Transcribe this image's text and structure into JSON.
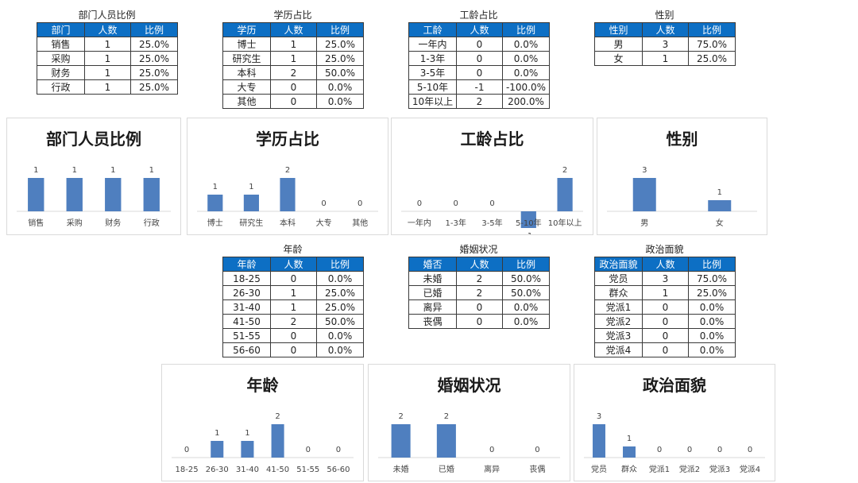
{
  "colors": {
    "header_bg": "#0d6fc4",
    "bar": "#4f7fbf"
  },
  "tables": {
    "dept": {
      "title": "部门人员比例",
      "headers": [
        "部门",
        "人数",
        "比例"
      ],
      "rows": [
        [
          "销售",
          "1",
          "25.0%"
        ],
        [
          "采购",
          "1",
          "25.0%"
        ],
        [
          "财务",
          "1",
          "25.0%"
        ],
        [
          "行政",
          "1",
          "25.0%"
        ]
      ]
    },
    "edu": {
      "title": "学历占比",
      "headers": [
        "学历",
        "人数",
        "比例"
      ],
      "rows": [
        [
          "博士",
          "1",
          "25.0%"
        ],
        [
          "研究生",
          "1",
          "25.0%"
        ],
        [
          "本科",
          "2",
          "50.0%"
        ],
        [
          "大专",
          "0",
          "0.0%"
        ],
        [
          "其他",
          "0",
          "0.0%"
        ]
      ]
    },
    "tenure": {
      "title": "工龄占比",
      "headers": [
        "工龄",
        "人数",
        "比例"
      ],
      "rows": [
        [
          "一年内",
          "0",
          "0.0%"
        ],
        [
          "1-3年",
          "0",
          "0.0%"
        ],
        [
          "3-5年",
          "0",
          "0.0%"
        ],
        [
          "5-10年",
          "-1",
          "-100.0%"
        ],
        [
          "10年以上",
          "2",
          "200.0%"
        ]
      ]
    },
    "gender": {
      "title": "性别",
      "headers": [
        "性别",
        "人数",
        "比例"
      ],
      "rows": [
        [
          "男",
          "3",
          "75.0%"
        ],
        [
          "女",
          "1",
          "25.0%"
        ]
      ]
    },
    "age": {
      "title": "年龄",
      "headers": [
        "年龄",
        "人数",
        "比例"
      ],
      "rows": [
        [
          "18-25",
          "0",
          "0.0%"
        ],
        [
          "26-30",
          "1",
          "25.0%"
        ],
        [
          "31-40",
          "1",
          "25.0%"
        ],
        [
          "41-50",
          "2",
          "50.0%"
        ],
        [
          "51-55",
          "0",
          "0.0%"
        ],
        [
          "56-60",
          "0",
          "0.0%"
        ]
      ]
    },
    "marriage": {
      "title": "婚姻状况",
      "headers": [
        "婚否",
        "人数",
        "比例"
      ],
      "rows": [
        [
          "未婚",
          "2",
          "50.0%"
        ],
        [
          "已婚",
          "2",
          "50.0%"
        ],
        [
          "离异",
          "0",
          "0.0%"
        ],
        [
          "丧偶",
          "0",
          "0.0%"
        ]
      ]
    },
    "politics": {
      "title": "政治面貌",
      "headers": [
        "政治面貌",
        "人数",
        "比例"
      ],
      "rows": [
        [
          "党员",
          "3",
          "75.0%"
        ],
        [
          "群众",
          "1",
          "25.0%"
        ],
        [
          "党派1",
          "0",
          "0.0%"
        ],
        [
          "党派2",
          "0",
          "0.0%"
        ],
        [
          "党派3",
          "0",
          "0.0%"
        ],
        [
          "党派4",
          "0",
          "0.0%"
        ]
      ]
    }
  },
  "chart_data": [
    {
      "id": "dept",
      "type": "bar",
      "title": "部门人员比例",
      "categories": [
        "销售",
        "采购",
        "财务",
        "行政"
      ],
      "values": [
        1,
        1,
        1,
        1
      ],
      "ylim": [
        0,
        1
      ]
    },
    {
      "id": "edu",
      "type": "bar",
      "title": "学历占比",
      "categories": [
        "博士",
        "研究生",
        "本科",
        "大专",
        "其他"
      ],
      "values": [
        1,
        1,
        2,
        0,
        0
      ],
      "ylim": [
        0,
        2
      ]
    },
    {
      "id": "tenure",
      "type": "bar",
      "title": "工龄占比",
      "categories": [
        "一年内",
        "1-3年",
        "3-5年",
        "5-10年",
        "10年以上"
      ],
      "values": [
        0,
        0,
        0,
        -1,
        2
      ],
      "ylim": [
        -1,
        2
      ]
    },
    {
      "id": "gender",
      "type": "bar",
      "title": "性别",
      "categories": [
        "男",
        "女"
      ],
      "values": [
        3,
        1
      ],
      "ylim": [
        0,
        3
      ]
    },
    {
      "id": "age",
      "type": "bar",
      "title": "年龄",
      "categories": [
        "18-25",
        "26-30",
        "31-40",
        "41-50",
        "51-55",
        "56-60"
      ],
      "values": [
        0,
        1,
        1,
        2,
        0,
        0
      ],
      "ylim": [
        0,
        2
      ]
    },
    {
      "id": "marriage",
      "type": "bar",
      "title": "婚姻状况",
      "categories": [
        "未婚",
        "已婚",
        "离异",
        "丧偶"
      ],
      "values": [
        2,
        2,
        0,
        0
      ],
      "ylim": [
        0,
        2
      ]
    },
    {
      "id": "politics",
      "type": "bar",
      "title": "政治面貌",
      "categories": [
        "党员",
        "群众",
        "党派1",
        "党派2",
        "党派3",
        "党派4"
      ],
      "values": [
        3,
        1,
        0,
        0,
        0,
        0
      ],
      "ylim": [
        0,
        3
      ]
    }
  ]
}
